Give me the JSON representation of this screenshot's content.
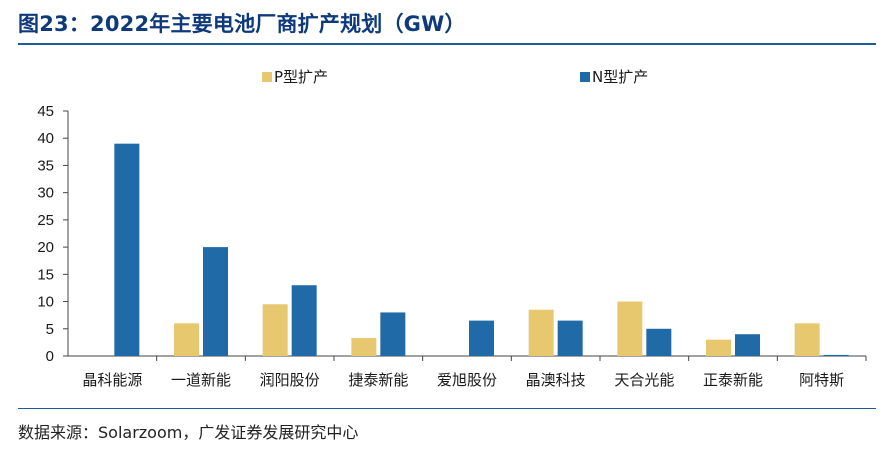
{
  "header": {
    "title": "图23：2022年主要电池厂商扩产规划（GW）"
  },
  "footer": {
    "source": "数据来源：Solarzoom，广发证券发展研究中心"
  },
  "colors": {
    "p_type": "#e8c86e",
    "n_type": "#1f6aa7",
    "title": "#0e3a7c",
    "rule": "#1f5a99"
  },
  "chart_data": {
    "type": "bar",
    "title": "2022年主要电池厂商扩产规划（GW）",
    "xlabel": "",
    "ylabel": "",
    "categories": [
      "晶科能源",
      "一道新能",
      "润阳股份",
      "捷泰新能",
      "爱旭股份",
      "晶澳科技",
      "天合光能",
      "正泰新能",
      "阿特斯"
    ],
    "series": [
      {
        "name": "P型扩产",
        "color": "#e8c86e",
        "values": [
          0,
          6,
          9.5,
          3.3,
          0,
          8.5,
          10,
          3,
          6
        ]
      },
      {
        "name": "N型扩产",
        "color": "#1f6aa7",
        "values": [
          39,
          20,
          13,
          8,
          6.5,
          6.5,
          5,
          4,
          0.2
        ]
      }
    ],
    "ylim": [
      0,
      45
    ],
    "yticks": [
      0,
      5,
      10,
      15,
      20,
      25,
      30,
      35,
      40,
      45
    ],
    "grid": false,
    "legend_position": "top"
  }
}
